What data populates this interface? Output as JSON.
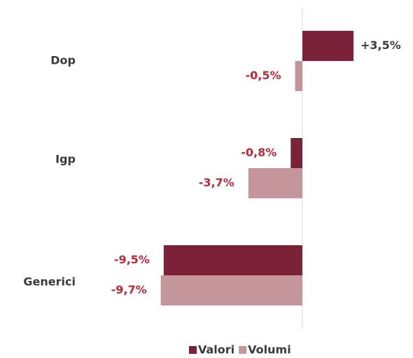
{
  "chart_data": {
    "type": "hbar",
    "categories": [
      "Dop",
      "Igp",
      "Generici"
    ],
    "series": [
      {
        "name": "Valori",
        "color": "#7a2338",
        "values": [
          3.5,
          -0.8,
          -9.5
        ],
        "value_labels": [
          "+3,5%",
          "-0,8%",
          "-9,5%"
        ]
      },
      {
        "name": "Volumi",
        "color": "#c4969b",
        "values": [
          -0.5,
          -3.7,
          -9.7
        ],
        "value_labels": [
          "-0,5%",
          "-3,7%",
          "-9,7%"
        ]
      }
    ],
    "xlim": [
      -10,
      4
    ],
    "positive_label_color": "#3a3a3a",
    "negative_label_color": "#c0283a",
    "legend": "bottom"
  }
}
